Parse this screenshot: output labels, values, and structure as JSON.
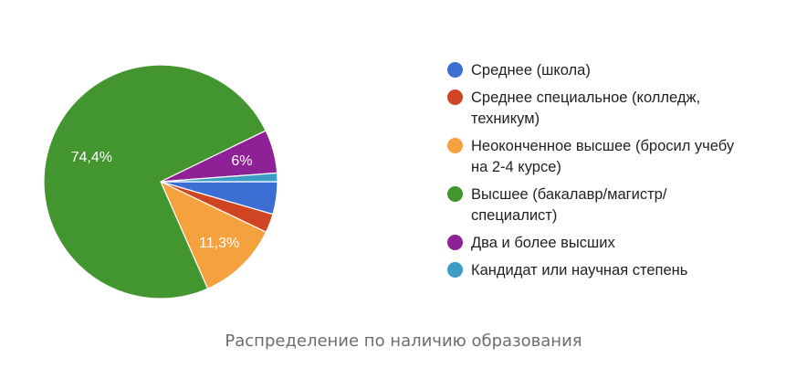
{
  "chart_data": {
    "type": "pie",
    "categories": [
      "Среднее (школа)",
      "Среднее специальное (колледж, техникум)",
      "Неоконченное высшее (бросил учебу на 2-4 курсе)",
      "Высшее (бакалавр/магистр/ специалист)",
      "Два и более высших",
      "Кандидат или научная степень"
    ],
    "values": [
      4.5,
      2.6,
      11.3,
      74.4,
      6.0,
      1.2
    ],
    "data_labels": [
      "",
      "",
      "11,3%",
      "74,4%",
      "6%",
      ""
    ],
    "colors": [
      "#3366cc",
      "#dc3912",
      "#ff9900",
      "#109618",
      "#990099",
      "#0099c6"
    ],
    "legend_lines": [
      [
        "Среднее (школа)"
      ],
      [
        "Среднее специальное (колледж,",
        "техникум)"
      ],
      [
        "Неоконченное высшее (бросил учебу",
        "на 2-4 курсе)"
      ],
      [
        "Высшее (бакалавр/магистр/",
        "специалист)"
      ],
      [
        "Два и более высших"
      ],
      [
        "Кандидат или научная степень"
      ]
    ],
    "legend_position": "right",
    "start_angle_deg": 90,
    "direction": "clockwise"
  },
  "caption": "Распределение по наличию образования"
}
